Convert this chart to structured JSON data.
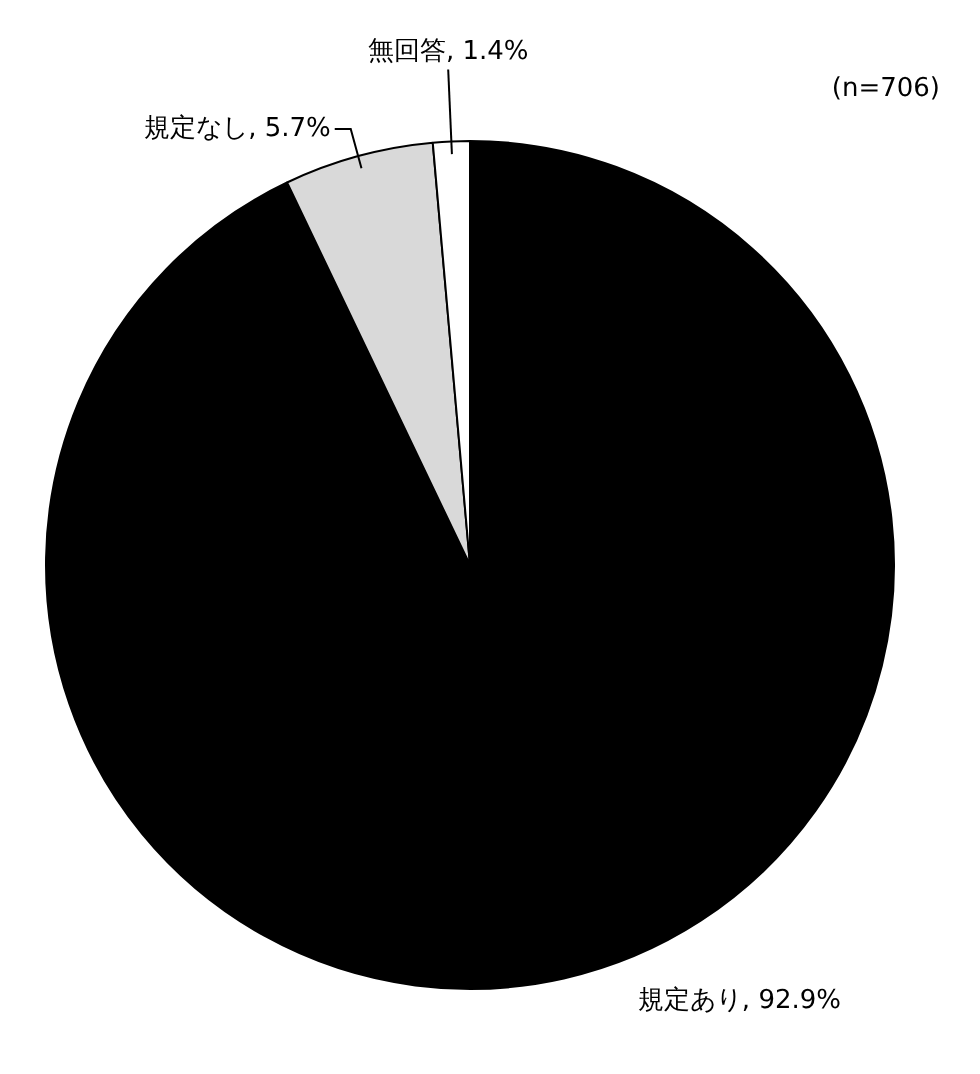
{
  "chart_data": {
    "type": "pie",
    "categories": [
      "規定あり",
      "規定なし",
      "無回答"
    ],
    "values": [
      92.9,
      5.7,
      1.4
    ],
    "colors": [
      "#000000",
      "#d9d9d9",
      "#ffffff"
    ],
    "value_labels": [
      "92.9%",
      "5.7%",
      "1.4%"
    ],
    "annotations": [
      "(n=706)"
    ],
    "legend": false
  }
}
